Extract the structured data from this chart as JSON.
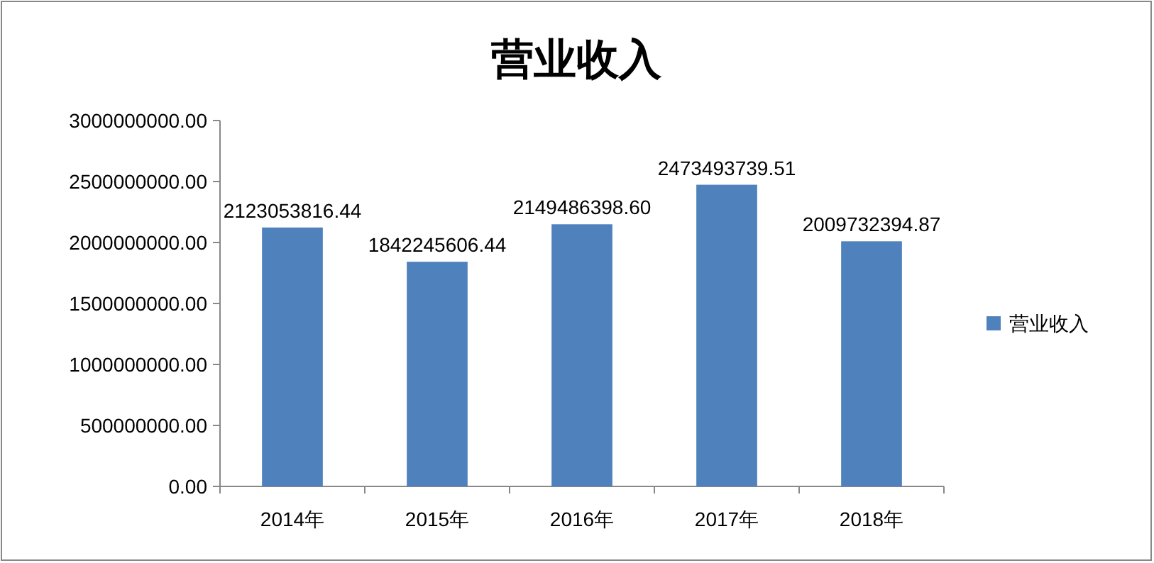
{
  "chart_data": {
    "type": "bar",
    "title": "营业收入",
    "categories": [
      "2014年",
      "2015年",
      "2016年",
      "2017年",
      "2018年"
    ],
    "series": [
      {
        "name": "营业收入",
        "color": "#4f81bd",
        "values": [
          2123053816.44,
          1842245606.44,
          2149486398.6,
          2473493739.51,
          2009732394.87
        ],
        "value_labels": [
          "2123053816.44",
          "1842245606.44",
          "2149486398.60",
          "2473493739.51",
          "2009732394.87"
        ]
      }
    ],
    "ylim": [
      0,
      3000000000
    ],
    "yticks": [
      {
        "value": 0,
        "label": "0.00"
      },
      {
        "value": 500000000,
        "label": "500000000.00"
      },
      {
        "value": 1000000000,
        "label": "1000000000.00"
      },
      {
        "value": 1500000000,
        "label": "1500000000.00"
      },
      {
        "value": 2000000000,
        "label": "2000000000.00"
      },
      {
        "value": 2500000000,
        "label": "2500000000.00"
      },
      {
        "value": 3000000000,
        "label": "3000000000.00"
      }
    ],
    "grid": false,
    "legend": "right"
  }
}
